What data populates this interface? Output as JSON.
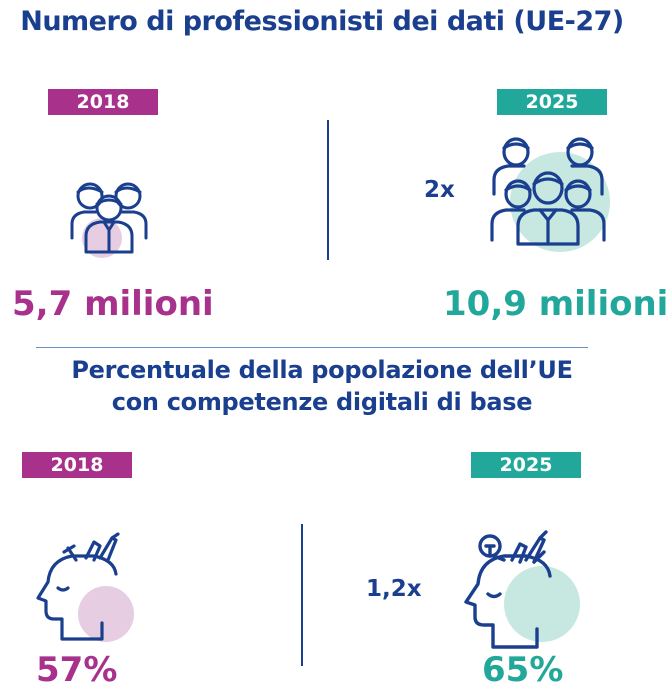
{
  "section1": {
    "title": "Numero di professionisti dei dati (UE-27)",
    "left": {
      "year": "2018",
      "value": "5,7 milioni"
    },
    "right": {
      "year": "2025",
      "value": "10,9 milioni",
      "multiplier": "2x"
    }
  },
  "section2": {
    "title_line1": "Percentuale della popolazione dell’UE",
    "title_line2": "con competenze digitali di base",
    "left": {
      "year": "2018",
      "value": "57%"
    },
    "right": {
      "year": "2025",
      "value": "65%",
      "multiplier": "1,2x"
    }
  },
  "colors": {
    "navy": "#1a3f8f",
    "purple": "#a8318c",
    "teal": "#22a89a",
    "light_purple": "#e6cde2",
    "light_teal": "#c6e8e1"
  },
  "icons": {
    "people_small": "people-group-icon",
    "people_large": "people-group-large-icon",
    "head_small": "head-tools-icon",
    "head_large": "head-tools-bulb-icon"
  }
}
